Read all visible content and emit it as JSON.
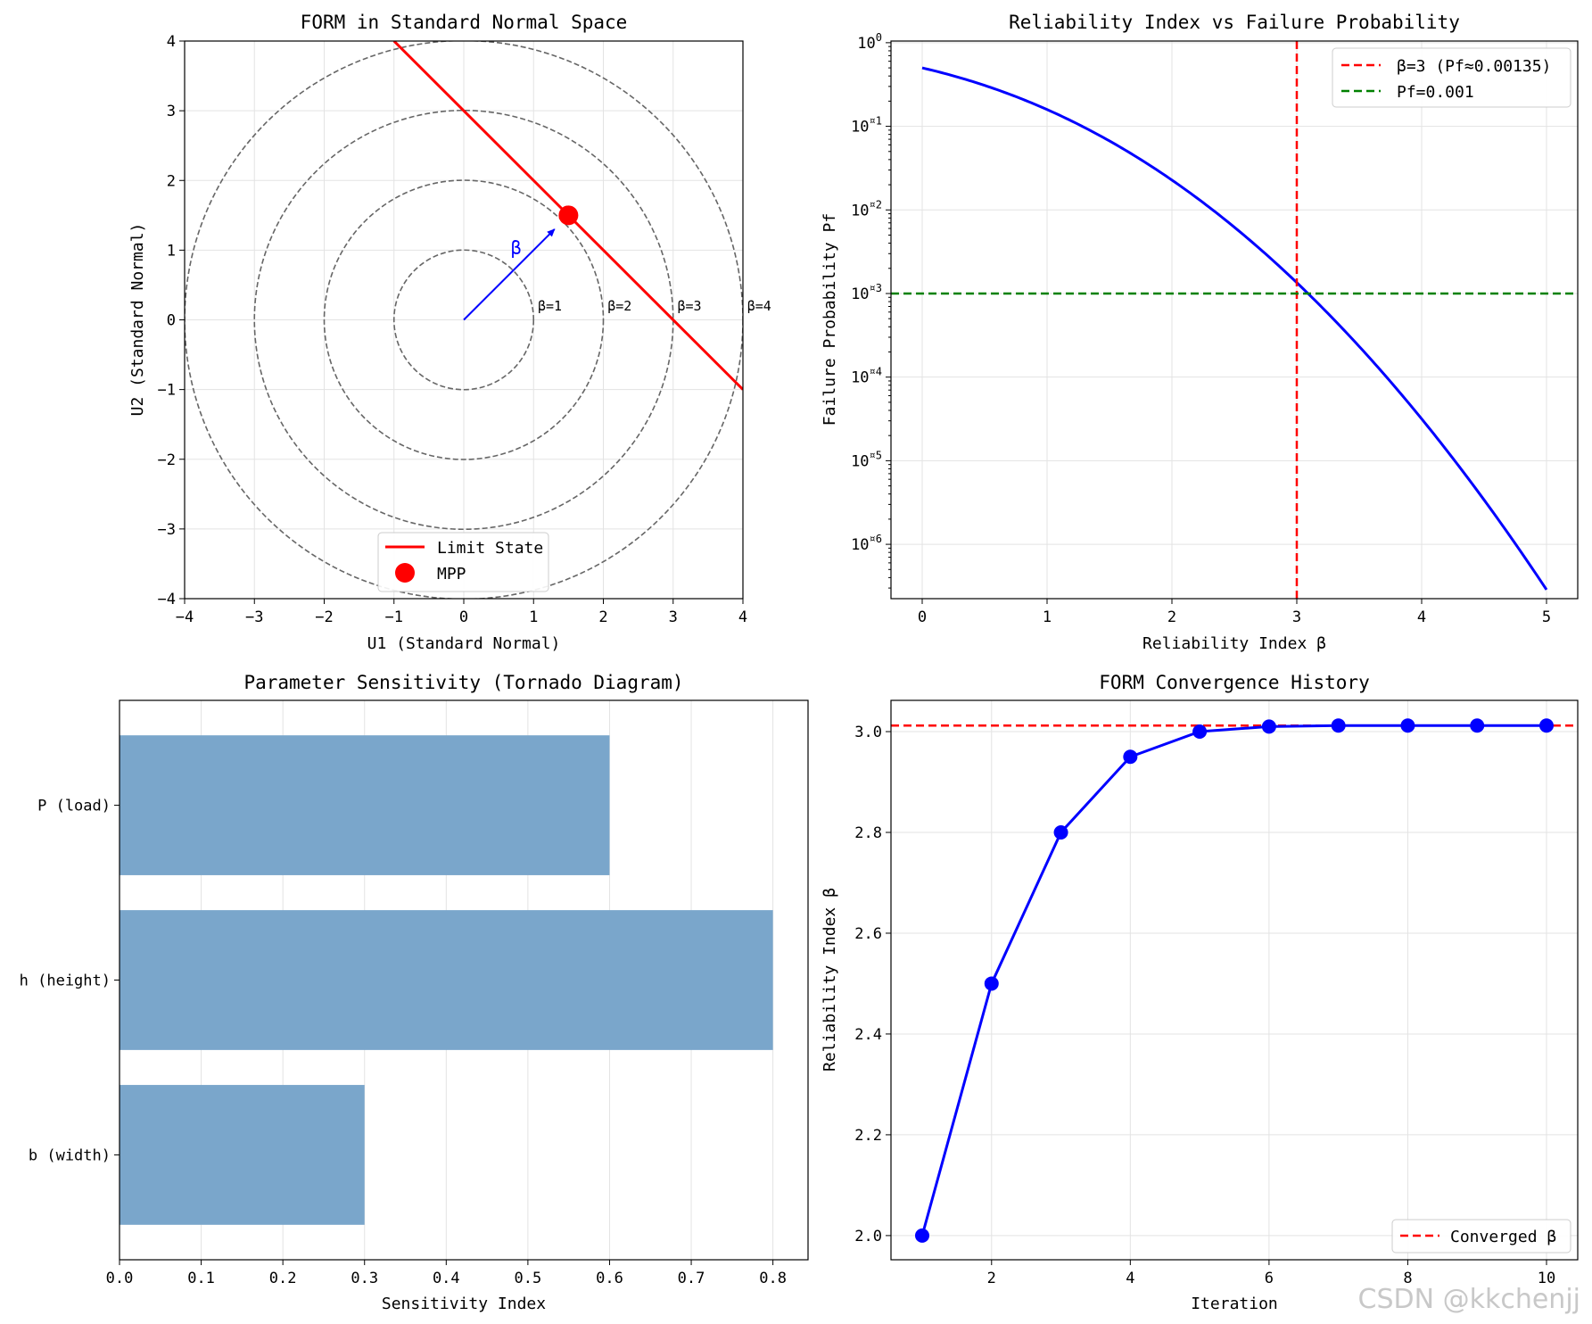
{
  "watermark": "CSDN @kkchenjj",
  "colors": {
    "limit_state": "#ff0000",
    "mpp": "#ff0000",
    "beta_arrow": "#0000ff",
    "circles": "#666666",
    "pf_curve": "#0000ff",
    "ref_red": "#ff0000",
    "ref_green": "#008000",
    "bars": "#7aa6cb",
    "conv_line": "#0000ff",
    "grid": "#e3e3e3"
  },
  "chart_data": [
    {
      "id": "form-space",
      "type": "line",
      "title": "FORM in Standard Normal Space",
      "xlabel": "U1 (Standard Normal)",
      "ylabel": "U2 (Standard Normal)",
      "xlim": [
        -4,
        4
      ],
      "ylim": [
        -4,
        4
      ],
      "xticks": [
        -4,
        -3,
        -2,
        -1,
        0,
        1,
        2,
        3,
        4
      ],
      "yticks": [
        -4,
        -3,
        -2,
        -1,
        0,
        1,
        2,
        3,
        4
      ],
      "grid": true,
      "limit_state": {
        "x": [
          -1,
          4
        ],
        "y": [
          4,
          -1
        ]
      },
      "mpp": {
        "x": 1.5,
        "y": 1.5
      },
      "beta_arrow": {
        "from": [
          0,
          0
        ],
        "to": [
          1.3,
          1.3
        ],
        "label": "β"
      },
      "circles": [
        {
          "radius": 1,
          "label": "β=1"
        },
        {
          "radius": 2,
          "label": "β=2"
        },
        {
          "radius": 3,
          "label": "β=3"
        },
        {
          "radius": 4,
          "label": "β=4"
        }
      ],
      "legend": {
        "position": "lower center",
        "entries": [
          "Limit State",
          "MPP"
        ]
      }
    },
    {
      "id": "beta-pf",
      "type": "line",
      "title": "Reliability Index vs Failure Probability",
      "xlabel": "Reliability Index β",
      "ylabel": "Failure Probability Pf",
      "yscale": "log",
      "xlim": [
        -0.25,
        5.25
      ],
      "ylim_log10": [
        -6.65,
        0.02
      ],
      "xticks": [
        0,
        1,
        2,
        3,
        4,
        5
      ],
      "ytick_labels": [
        {
          "base": "10",
          "exp": "0",
          "log": 0
        },
        {
          "base": "10",
          "exp": "¤1",
          "log": -1
        },
        {
          "base": "10",
          "exp": "¤2",
          "log": -2
        },
        {
          "base": "10",
          "exp": "¤3",
          "log": -3
        },
        {
          "base": "10",
          "exp": "¤4",
          "log": -4
        },
        {
          "base": "10",
          "exp": "¤5",
          "log": -5
        },
        {
          "base": "10",
          "exp": "¤6",
          "log": -6
        }
      ],
      "curve": {
        "function": "Pf = Phi(-beta)",
        "beta_range": [
          0,
          5
        ]
      },
      "vline": {
        "x": 3,
        "label": "β=3 (Pf≈0.00135)"
      },
      "hline": {
        "y": 0.001,
        "label": "Pf=0.001"
      },
      "grid": true,
      "legend": {
        "position": "top-right",
        "entries": [
          "β=3 (Pf≈0.00135)",
          "Pf=0.001"
        ]
      }
    },
    {
      "id": "tornado",
      "type": "bar",
      "orientation": "horizontal",
      "title": "Parameter Sensitivity (Tornado Diagram)",
      "xlabel": "Sensitivity Index",
      "categories": [
        "P (load)",
        "h (height)",
        "b (width)"
      ],
      "values": [
        0.6,
        0.8,
        0.3
      ],
      "xlim": [
        0,
        0.843
      ],
      "xticks": [
        0.0,
        0.1,
        0.2,
        0.3,
        0.4,
        0.5,
        0.6,
        0.7,
        0.8
      ],
      "grid": true
    },
    {
      "id": "convergence",
      "type": "line",
      "title": "FORM Convergence History",
      "xlabel": "Iteration",
      "ylabel": "Reliability Index β",
      "x": [
        1,
        2,
        3,
        4,
        5,
        6,
        7,
        8,
        9,
        10
      ],
      "y": [
        2.0,
        2.5,
        2.8,
        2.95,
        3.0,
        3.01,
        3.012,
        3.012,
        3.012,
        3.012
      ],
      "converged": 3.012,
      "xlim": [
        0.55,
        10.45
      ],
      "ylim": [
        1.952,
        3.062
      ],
      "xticks": [
        2,
        4,
        6,
        8,
        10
      ],
      "yticks": [
        2.0,
        2.2,
        2.4,
        2.6,
        2.8,
        3.0
      ],
      "grid": true,
      "legend": {
        "position": "lower right",
        "entries": [
          "Converged β"
        ]
      }
    }
  ]
}
